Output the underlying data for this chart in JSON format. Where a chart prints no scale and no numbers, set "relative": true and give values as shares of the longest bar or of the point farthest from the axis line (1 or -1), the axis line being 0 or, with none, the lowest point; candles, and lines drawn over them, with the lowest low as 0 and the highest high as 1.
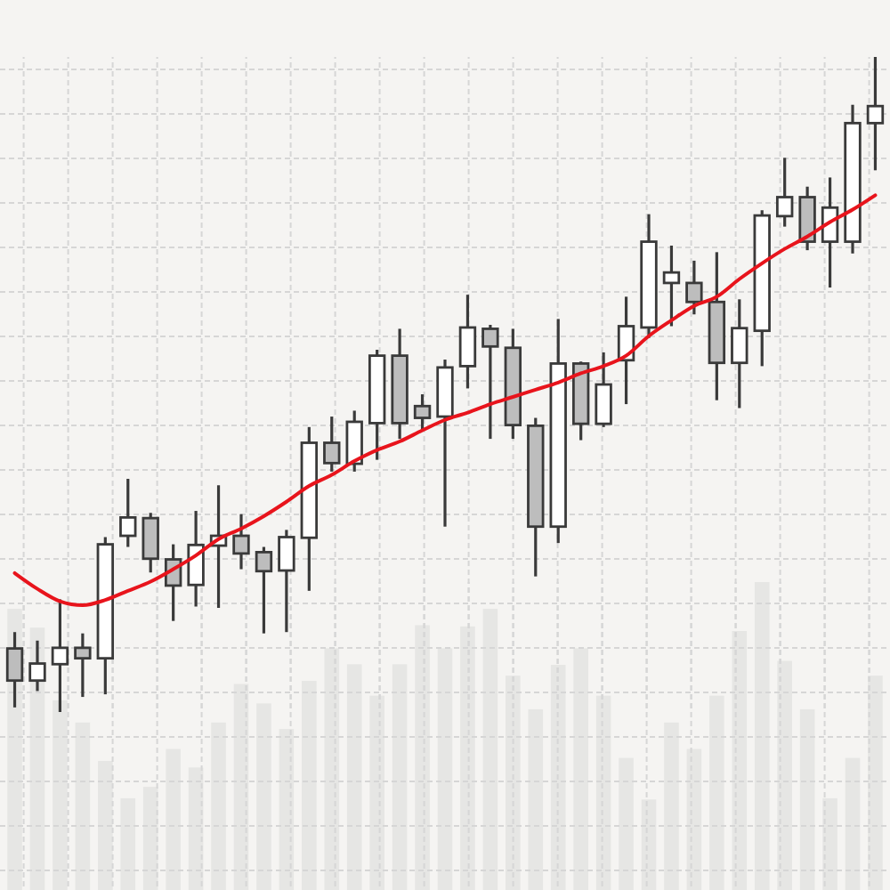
{
  "chart_data": [
    {
      "type": "candlestick",
      "relative": true,
      "grid": true,
      "categories": [
        null,
        null,
        null,
        null,
        null,
        null,
        null,
        null,
        null,
        null,
        null,
        null,
        null,
        null,
        null,
        null,
        null,
        null,
        null,
        null,
        null,
        null,
        null,
        null,
        null,
        null,
        null,
        null,
        null,
        null,
        null,
        null,
        null,
        null,
        null,
        null,
        null,
        null,
        null
      ],
      "ohlc": [
        [
          0.097,
          0.122,
          0.007,
          0.048
        ],
        [
          0.048,
          0.109,
          0.032,
          0.074
        ],
        [
          0.073,
          0.172,
          0,
          0.098
        ],
        [
          0.098,
          0.12,
          0.023,
          0.082
        ],
        [
          0.082,
          0.267,
          0.027,
          0.256
        ],
        [
          0.269,
          0.356,
          0.252,
          0.297
        ],
        [
          0.296,
          0.304,
          0.213,
          0.234
        ],
        [
          0.233,
          0.256,
          0.139,
          0.193
        ],
        [
          0.194,
          0.307,
          0.161,
          0.255
        ],
        [
          0.254,
          0.346,
          0.159,
          0.269
        ],
        [
          0.269,
          0.302,
          0.218,
          0.242
        ],
        [
          0.244,
          0.252,
          0.12,
          0.215
        ],
        [
          0.216,
          0.278,
          0.122,
          0.267
        ],
        [
          0.266,
          0.435,
          0.185,
          0.411
        ],
        [
          0.411,
          0.451,
          0.367,
          0.38
        ],
        [
          0.379,
          0.46,
          0.367,
          0.443
        ],
        [
          0.441,
          0.553,
          0.385,
          0.544
        ],
        [
          0.544,
          0.585,
          0.417,
          0.441
        ],
        [
          0.467,
          0.485,
          0.431,
          0.449
        ],
        [
          0.451,
          0.538,
          0.283,
          0.526
        ],
        [
          0.528,
          0.637,
          0.494,
          0.587
        ],
        [
          0.585,
          0.591,
          0.417,
          0.558
        ],
        [
          0.556,
          0.585,
          0.417,
          0.438
        ],
        [
          0.437,
          0.449,
          0.207,
          0.283
        ],
        [
          0.283,
          0.6,
          0.258,
          0.532
        ],
        [
          0.532,
          0.535,
          0.415,
          0.44
        ],
        [
          0.44,
          0.549,
          0.435,
          0.5
        ],
        [
          0.537,
          0.634,
          0.47,
          0.589
        ],
        [
          0.587,
          0.76,
          0.571,
          0.718
        ],
        [
          0.655,
          0.712,
          0.589,
          0.671
        ],
        [
          0.655,
          0.689,
          0.607,
          0.626
        ],
        [
          0.626,
          0.702,
          0.476,
          0.533
        ],
        [
          0.533,
          0.63,
          0.464,
          0.586
        ],
        [
          0.582,
          0.766,
          0.528,
          0.758
        ],
        [
          0.757,
          0.846,
          0.741,
          0.786
        ],
        [
          0.786,
          0.802,
          0.705,
          0.718
        ],
        [
          0.718,
          0.816,
          0.648,
          0.77
        ],
        [
          0.718,
          0.927,
          0.7,
          0.899
        ],
        [
          0.899,
          1,
          0.827,
          0.925
        ]
      ],
      "colors": [
        "#bdbdbd",
        "#ffffff",
        "#ffffff",
        "#bdbdbd",
        "#ffffff",
        "#ffffff",
        "#bdbdbd",
        "#bdbdbd",
        "#ffffff",
        "#ffffff",
        "#bdbdbd",
        "#bdbdbd",
        "#ffffff",
        "#ffffff",
        "#bdbdbd",
        "#ffffff",
        "#ffffff",
        "#bdbdbd",
        "#bdbdbd",
        "#ffffff",
        "#ffffff",
        "#bdbdbd",
        "#bdbdbd",
        "#bdbdbd",
        "#ffffff",
        "#bdbdbd",
        "#ffffff",
        "#ffffff",
        "#ffffff",
        "#ffffff",
        "#bdbdbd",
        "#bdbdbd",
        "#ffffff",
        "#ffffff",
        "#ffffff",
        "#bdbdbd",
        "#ffffff",
        "#ffffff",
        "#ffffff"
      ],
      "series": [
        {
          "type": "line",
          "color": "#e8141c",
          "values": [
            0.212,
            0.188,
            0.169,
            0.163,
            0.171,
            0.185,
            0.199,
            0.218,
            0.239,
            0.264,
            0.28,
            0.299,
            0.321,
            0.345,
            0.362,
            0.383,
            0.4,
            0.413,
            0.43,
            0.446,
            0.457,
            0.47,
            0.481,
            0.492,
            0.503,
            0.517,
            0.528,
            0.544,
            0.574,
            0.598,
            0.62,
            0.634,
            0.661,
            0.685,
            0.707,
            0.726,
            0.748,
            0.767,
            0.789
          ]
        }
      ]
    },
    {
      "type": "bar",
      "relative": true,
      "grid": true,
      "color": "#e6e6e4",
      "categories": [
        null,
        null,
        null,
        null,
        null,
        null,
        null,
        null,
        null,
        null,
        null,
        null,
        null,
        null,
        null,
        null,
        null,
        null,
        null,
        null,
        null,
        null,
        null,
        null,
        null,
        null,
        null,
        null,
        null,
        null,
        null,
        null,
        null,
        null,
        null,
        null,
        null,
        null,
        null
      ],
      "values": [
        0.913,
        0.852,
        0.616,
        0.544,
        0.419,
        0.298,
        0.335,
        0.458,
        0.398,
        0.544,
        0.669,
        0.606,
        0.523,
        0.679,
        0.785,
        0.733,
        0.631,
        0.733,
        0.86,
        0.785,
        0.856,
        0.913,
        0.696,
        0.587,
        0.731,
        0.785,
        0.631,
        0.429,
        0.294,
        0.544,
        0.458,
        0.631,
        0.841,
        1,
        0.744,
        0.587,
        0.298,
        0.429,
        0.696
      ]
    }
  ]
}
